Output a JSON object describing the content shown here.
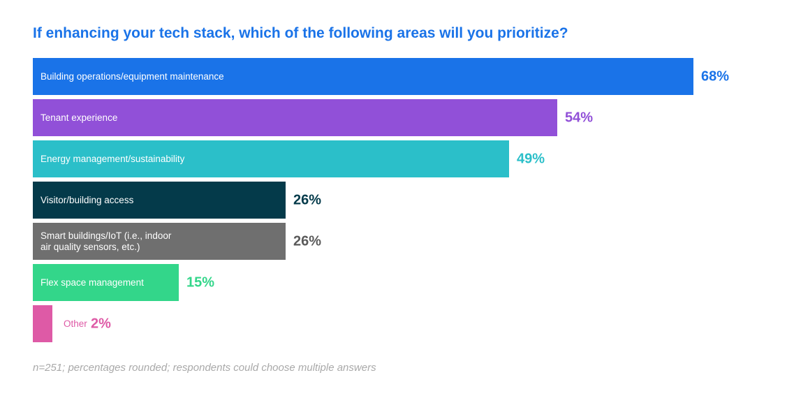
{
  "title": "If enhancing your tech stack, which of the following areas will you prioritize?",
  "footnote": "n=251; percentages rounded; respondents could choose multiple answers",
  "chart_data": {
    "type": "bar",
    "orientation": "horizontal",
    "title": "If enhancing your tech stack, which of the following areas will you prioritize?",
    "categories": [
      "Building operations/equipment maintenance",
      "Tenant experience",
      "Energy management/sustainability",
      "Visitor/building access",
      "Smart buildings/IoT (i.e., indoor\nair quality sensors, etc.)",
      "Flex space management",
      "Other"
    ],
    "values": [
      68,
      54,
      49,
      26,
      26,
      15,
      2
    ],
    "value_labels": [
      "68%",
      "54%",
      "49%",
      "26%",
      "26%",
      "15%",
      "2%"
    ],
    "unit": "%",
    "xlim": [
      0,
      68
    ],
    "grid": false,
    "legend": "none",
    "colors": [
      "#1a73e8",
      "#9150d8",
      "#2bbfc9",
      "#043a4a",
      "#6f6f6f",
      "#33d68a",
      "#de5aa6"
    ],
    "value_label_colors": [
      "#1a73e8",
      "#9150d8",
      "#2bbfc9",
      "#043a4a",
      "#5a5a5a",
      "#33d68a",
      "#de5aa6"
    ]
  }
}
